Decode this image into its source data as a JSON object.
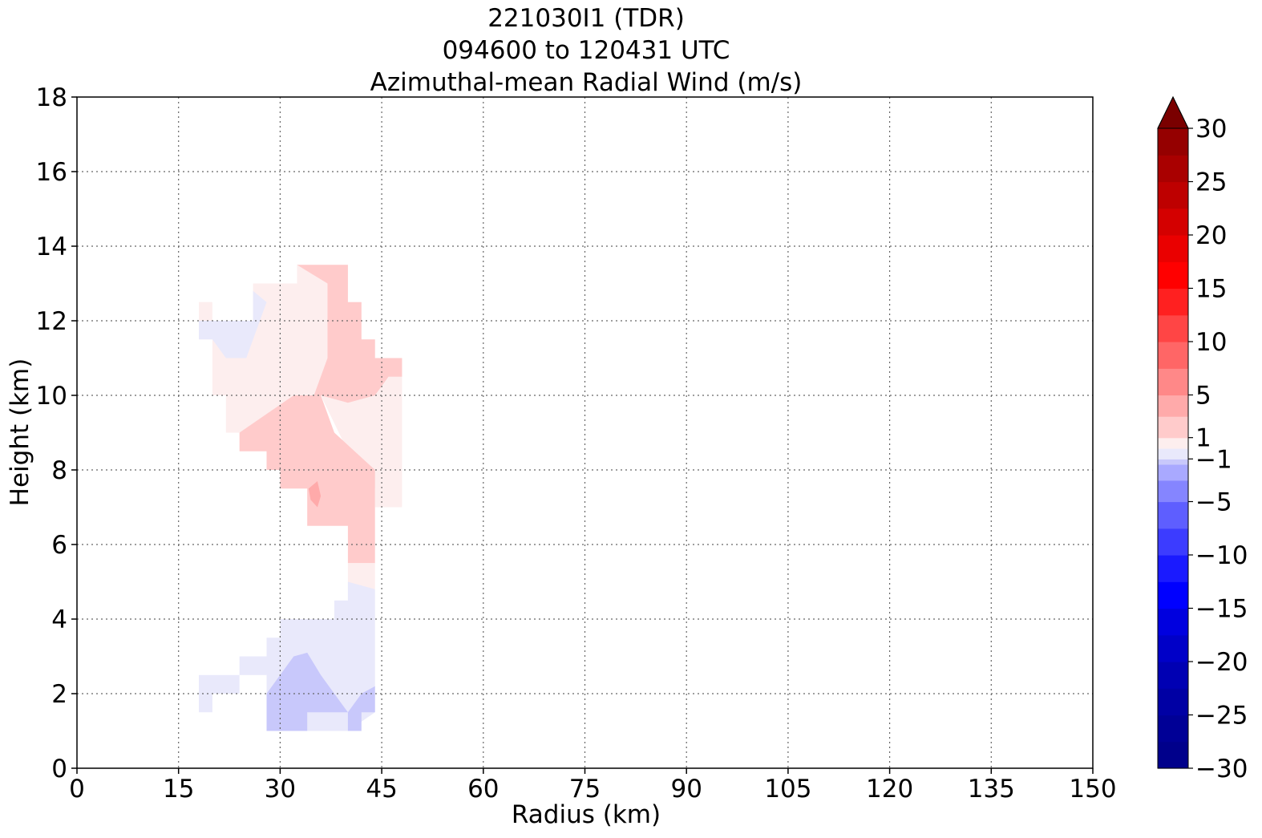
{
  "chart_data": {
    "type": "heatmap",
    "title_lines": [
      "221030I1 (TDR)",
      "094600 to 120431 UTC",
      "Azimuthal-mean Radial Wind (m/s)"
    ],
    "xlabel": "Radius (km)",
    "ylabel": "Height (km)",
    "xlim": [
      0,
      150
    ],
    "ylim": [
      0,
      18
    ],
    "x_ticks": [
      "0",
      "15",
      "30",
      "45",
      "60",
      "75",
      "90",
      "105",
      "120",
      "135",
      "150"
    ],
    "y_ticks": [
      "0",
      "2",
      "4",
      "6",
      "8",
      "10",
      "12",
      "14",
      "16",
      "18"
    ],
    "grid": "dotted",
    "colorbar": {
      "range": [
        -30,
        30
      ],
      "extend": "max",
      "tick_values": [
        30,
        25,
        20,
        15,
        10,
        5,
        1,
        -1,
        -5,
        -10,
        -15,
        -20,
        -25,
        -30
      ],
      "tick_labels": [
        "30",
        "25",
        "20",
        "15",
        "10",
        "5",
        "1",
        "−1",
        "−5",
        "−10",
        "−15",
        "−20",
        "−25",
        "−30"
      ],
      "extend_color": "#7a0000",
      "bands": [
        {
          "from": -30,
          "to": -27.5,
          "color": "#00008b"
        },
        {
          "from": -27.5,
          "to": -25,
          "color": "#000096"
        },
        {
          "from": -25,
          "to": -22.5,
          "color": "#0000a4"
        },
        {
          "from": -22.5,
          "to": -20,
          "color": "#0000b3"
        },
        {
          "from": -20,
          "to": -17.5,
          "color": "#0000c8"
        },
        {
          "from": -17.5,
          "to": -15,
          "color": "#0000df"
        },
        {
          "from": -15,
          "to": -12.5,
          "color": "#0000ff"
        },
        {
          "from": -12.5,
          "to": -10,
          "color": "#1a1aff"
        },
        {
          "from": -10,
          "to": -7.5,
          "color": "#3c3cff"
        },
        {
          "from": -7.5,
          "to": -5,
          "color": "#5e5eff"
        },
        {
          "from": -5,
          "to": -3,
          "color": "#8585ff"
        },
        {
          "from": -3,
          "to": -1.5,
          "color": "#a9a9ff"
        },
        {
          "from": -1.5,
          "to": -1,
          "color": "#c8c8fb"
        },
        {
          "from": -1,
          "to": 0,
          "color": "#e9e9fb"
        },
        {
          "from": 0,
          "to": 1,
          "color": "#fdeeee"
        },
        {
          "from": 1,
          "to": 3,
          "color": "#ffcbcb"
        },
        {
          "from": 3,
          "to": 5,
          "color": "#ffaaaa"
        },
        {
          "from": 5,
          "to": 7.5,
          "color": "#ff8888"
        },
        {
          "from": 7.5,
          "to": 10,
          "color": "#ff6666"
        },
        {
          "from": 10,
          "to": 12.5,
          "color": "#ff4545"
        },
        {
          "from": 12.5,
          "to": 15,
          "color": "#ff2020"
        },
        {
          "from": 15,
          "to": 17.5,
          "color": "#ff0000"
        },
        {
          "from": 17.5,
          "to": 20,
          "color": "#ea0000"
        },
        {
          "from": 20,
          "to": 22.5,
          "color": "#d40000"
        },
        {
          "from": 22.5,
          "to": 25,
          "color": "#be0000"
        },
        {
          "from": 25,
          "to": 27.5,
          "color": "#a90000"
        },
        {
          "from": 27.5,
          "to": 30,
          "color": "#950000"
        }
      ]
    },
    "regions": [
      {
        "level": "0 to 1 m/s",
        "color": "#fdeeee",
        "points": [
          [
            18,
            12.5
          ],
          [
            20,
            12.5
          ],
          [
            20,
            11.5
          ],
          [
            18,
            11.5
          ]
        ]
      },
      {
        "level": "0 to 1 m/s",
        "color": "#fdeeee",
        "points": [
          [
            26,
            13
          ],
          [
            32.5,
            13
          ],
          [
            32.5,
            13.5
          ],
          [
            40,
            13.5
          ],
          [
            40,
            12.5
          ],
          [
            42,
            12.5
          ],
          [
            42,
            11.5
          ],
          [
            44,
            11.5
          ],
          [
            44,
            11
          ],
          [
            48,
            11
          ],
          [
            48,
            7
          ],
          [
            44,
            7
          ],
          [
            44,
            7.5
          ],
          [
            40,
            8.5
          ],
          [
            36,
            10
          ],
          [
            32,
            10
          ],
          [
            29,
            9.5
          ],
          [
            24,
            9
          ],
          [
            22,
            9
          ],
          [
            22,
            10
          ],
          [
            20,
            10
          ],
          [
            20,
            11.5
          ],
          [
            26,
            11.5
          ]
        ]
      },
      {
        "level": "-1 to 0 m/s",
        "color": "#e9e9fb",
        "points": [
          [
            18,
            11.5
          ],
          [
            20,
            11.5
          ],
          [
            22,
            11
          ],
          [
            25,
            11
          ],
          [
            28,
            12.5
          ],
          [
            26,
            12.8
          ],
          [
            26,
            12
          ],
          [
            24,
            12
          ],
          [
            18,
            12
          ]
        ]
      },
      {
        "level": "1 to 3 m/s",
        "color": "#ffcbcb",
        "points": [
          [
            32.5,
            13.5
          ],
          [
            40,
            13.5
          ],
          [
            40,
            12.5
          ],
          [
            42,
            12.5
          ],
          [
            42,
            11.5
          ],
          [
            44,
            11.5
          ],
          [
            44,
            11
          ],
          [
            48,
            11
          ],
          [
            48,
            10.5
          ],
          [
            46,
            10.5
          ],
          [
            44,
            10
          ],
          [
            40,
            9.8
          ],
          [
            36,
            10
          ],
          [
            38,
            9
          ],
          [
            41,
            8.5
          ],
          [
            44,
            8
          ],
          [
            44,
            5.5
          ],
          [
            40,
            5.5
          ],
          [
            40,
            6.5
          ],
          [
            34,
            6.5
          ],
          [
            34,
            7.5
          ],
          [
            30,
            7.5
          ],
          [
            30,
            8
          ],
          [
            28,
            8
          ],
          [
            28,
            8.5
          ],
          [
            24,
            8.5
          ],
          [
            24,
            9
          ],
          [
            28,
            9.5
          ],
          [
            32,
            10
          ],
          [
            35,
            10
          ],
          [
            37,
            11
          ],
          [
            37,
            13
          ]
        ]
      },
      {
        "level": "3 to 5 m/s",
        "color": "#ffaaaa",
        "points": [
          [
            34.2,
            7.5
          ],
          [
            35.5,
            7.7
          ],
          [
            36,
            7.3
          ],
          [
            35.5,
            7
          ],
          [
            34.5,
            7.2
          ]
        ]
      },
      {
        "level": "0 to 1 m/s",
        "color": "#fdeeee",
        "points": [
          [
            40,
            5.5
          ],
          [
            44,
            5.5
          ],
          [
            44,
            4.8
          ],
          [
            40,
            4.8
          ]
        ]
      },
      {
        "level": "-1 to 0 m/s",
        "color": "#e9e9fb",
        "points": [
          [
            40,
            5
          ],
          [
            44,
            4.8
          ],
          [
            44,
            1.5
          ],
          [
            40,
            1
          ],
          [
            36,
            1
          ],
          [
            30,
            1
          ],
          [
            28,
            1
          ],
          [
            28,
            2.5
          ],
          [
            24,
            2.5
          ],
          [
            18,
            2.5
          ],
          [
            18,
            1.5
          ],
          [
            20,
            1.5
          ],
          [
            20,
            2
          ],
          [
            24,
            2
          ],
          [
            24,
            3
          ],
          [
            28,
            3
          ],
          [
            28,
            3.5
          ],
          [
            30,
            3.5
          ],
          [
            30,
            4
          ],
          [
            38,
            4
          ],
          [
            38,
            4.5
          ],
          [
            40,
            4.5
          ]
        ]
      },
      {
        "level": "-1.5 to -1 m/s",
        "color": "#c8c8fb",
        "points": [
          [
            28,
            2
          ],
          [
            30,
            2.5
          ],
          [
            32,
            3
          ],
          [
            34,
            3.1
          ],
          [
            36,
            2.5
          ],
          [
            38,
            2
          ],
          [
            40,
            1.5
          ],
          [
            42,
            2
          ],
          [
            44,
            2.2
          ],
          [
            44,
            1.5
          ],
          [
            42,
            1.5
          ],
          [
            42,
            1
          ],
          [
            40,
            1
          ],
          [
            40,
            1.5
          ],
          [
            34,
            1.5
          ],
          [
            34,
            1
          ],
          [
            30,
            1
          ],
          [
            28,
            1
          ]
        ]
      }
    ]
  }
}
